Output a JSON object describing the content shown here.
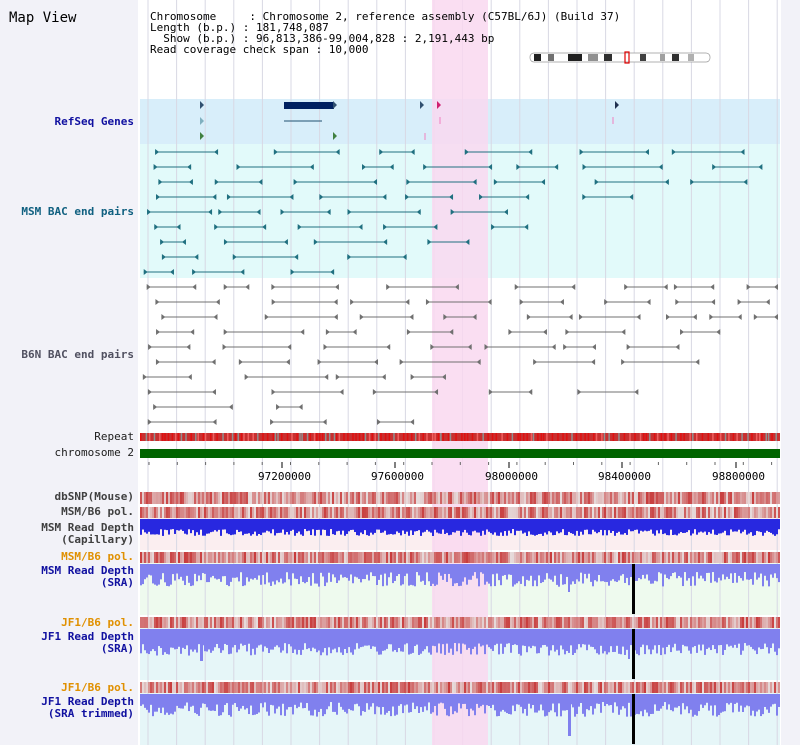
{
  "header": {
    "title": "Map View",
    "info_lines": [
      "Chromosome     : Chromosome 2, reference assembly (C57BL/6J) (Build 37)",
      "Length (b.p.) : 181,748,087",
      "  Show (b.p.) : 96,813,386-99,004,828 : 2,191,443 bp",
      "Read coverage check span : 10,000"
    ]
  },
  "tracks": {
    "refseq": "RefSeq Genes",
    "msm_bac": "MSM BAC end pairs",
    "b6n_bac": "B6N BAC end pairs",
    "repeat": "Repeat",
    "chromosome": "chromosome 2",
    "dbsnp": "dbSNP(Mouse)",
    "msm_b6_pol_1": "MSM/B6 pol.",
    "msm_depth_cap_1": "MSM Read Depth",
    "msm_depth_cap_2": "(Capillary)",
    "msm_b6_pol_2": "MSM/B6 pol.",
    "msm_depth_sra_1": "MSM Read Depth",
    "msm_depth_sra_2": "(SRA)",
    "jf1_b6_pol_1": "JF1/B6 pol.",
    "jf1_depth_sra_1": "JF1 Read Depth",
    "jf1_depth_sra_2": "(SRA)",
    "jf1_b6_pol_2": "JF1/B6 pol.",
    "jf1_depth_trim_1": "JF1 Read Depth",
    "jf1_depth_trim_2": "(SRA trimmed)"
  },
  "axis": {
    "ticks": [
      "97200000",
      "97600000",
      "98000000",
      "98400000",
      "98800000"
    ]
  },
  "colors": {
    "highlight": "#f9d8f0",
    "refseq_bg": "#d8eefa",
    "bac_bg": "#e2fafa",
    "chromosome_bar": "#006400",
    "depth_capillary": "#2828e0",
    "depth_sra": "#8080ee",
    "polymorphism": "#e83030"
  }
}
